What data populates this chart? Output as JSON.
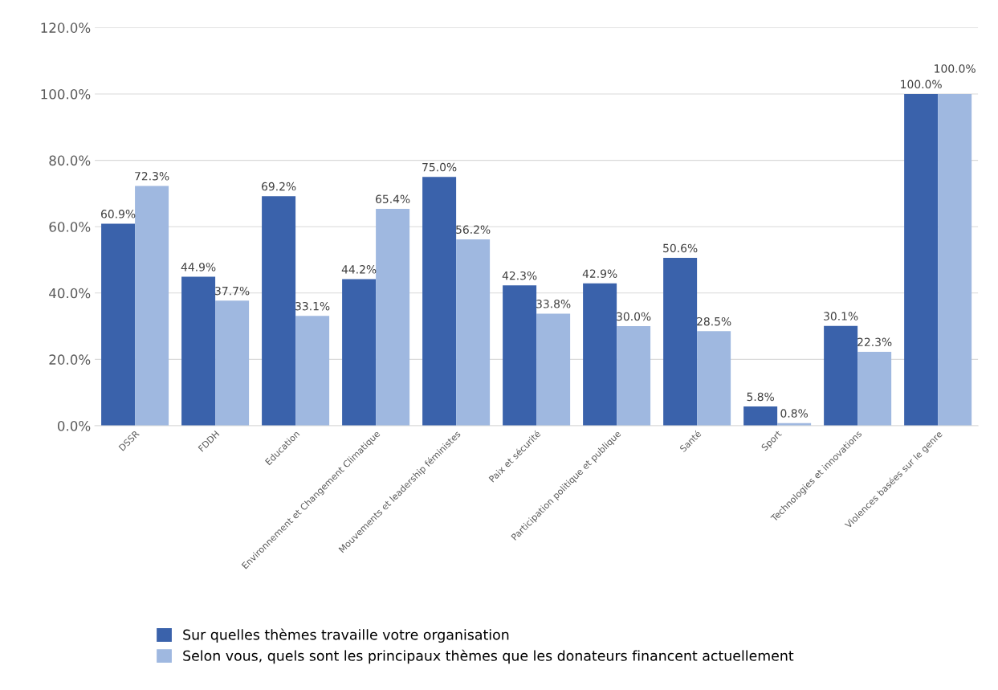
{
  "chart_data": {
    "type": "bar",
    "categories": [
      "DSSR",
      "FDDH",
      "Education",
      "Environnement et Changement Climatique",
      "Mouvements et leadership féministes",
      "Paix et sécurité",
      "Participation politique et publique",
      "Santé",
      "Sport",
      "Technologies et innovations",
      "Violences basées sur le genre"
    ],
    "series": [
      {
        "name": "Sur quelles thèmes travaille votre organisation",
        "color": "#3a62ab",
        "values": [
          60.9,
          44.9,
          69.2,
          44.2,
          75.0,
          42.3,
          42.9,
          50.6,
          5.8,
          30.1,
          100.0
        ],
        "value_labels": [
          "60.9%",
          "44.9%",
          "69.2%",
          "44.2%",
          "75.0%",
          "42.3%",
          "42.9%",
          "50.6%",
          "5.8%",
          "30.1%",
          "100.0%"
        ]
      },
      {
        "name": "Selon vous, quels sont les principaux thèmes que les donateurs financent actuellement",
        "color": "#9fb8e0",
        "values": [
          72.3,
          37.7,
          33.1,
          65.4,
          56.2,
          33.8,
          30.0,
          28.5,
          0.8,
          22.3,
          100.0
        ],
        "value_labels": [
          "72.3%",
          "37.7%",
          "33.1%",
          "65.4%",
          "56.2%",
          "33.8%",
          "30.0%",
          "28.5%",
          "0.8%",
          "22.3%",
          "100.0%"
        ]
      }
    ],
    "ylim": [
      0,
      120
    ],
    "yticks": [
      {
        "value": 0,
        "label": "0.0%"
      },
      {
        "value": 20,
        "label": "20.0%"
      },
      {
        "value": 40,
        "label": "40.0%"
      },
      {
        "value": 60,
        "label": "60.0%"
      },
      {
        "value": 80,
        "label": "80.0%"
      },
      {
        "value": 100,
        "label": "100.0%"
      },
      {
        "value": 120,
        "label": "120.0%"
      }
    ],
    "grid": "y",
    "legend": "bottom left"
  }
}
